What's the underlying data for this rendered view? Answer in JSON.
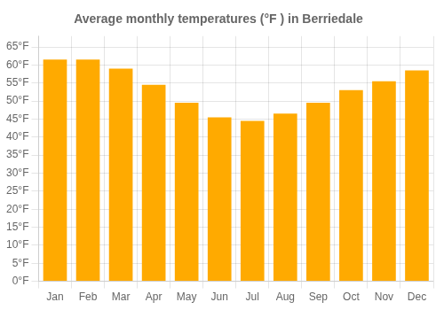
{
  "chart_data": {
    "type": "bar",
    "title": "Average monthly temperatures (°F ) in Berriedale",
    "categories": [
      "Jan",
      "Feb",
      "Mar",
      "Apr",
      "May",
      "Jun",
      "Jul",
      "Aug",
      "Sep",
      "Oct",
      "Nov",
      "Dec"
    ],
    "values": [
      61.5,
      61.5,
      59.0,
      54.5,
      49.5,
      45.5,
      44.5,
      46.5,
      49.5,
      53.0,
      55.5,
      58.5
    ],
    "color": "#FFAA00",
    "ylim": [
      0,
      68
    ],
    "yticks": [
      {
        "value": 0,
        "label": "0°F"
      },
      {
        "value": 5,
        "label": "5°F"
      },
      {
        "value": 10,
        "label": "10°F"
      },
      {
        "value": 15,
        "label": "15°F"
      },
      {
        "value": 20,
        "label": "20°F"
      },
      {
        "value": 25,
        "label": "25°F"
      },
      {
        "value": 30,
        "label": "30°F"
      },
      {
        "value": 35,
        "label": "35°F"
      },
      {
        "value": 40,
        "label": "40°F"
      },
      {
        "value": 45,
        "label": "45°F"
      },
      {
        "value": 50,
        "label": "50°F"
      },
      {
        "value": 55,
        "label": "55°F"
      },
      {
        "value": 60,
        "label": "60°F"
      },
      {
        "value": 65,
        "label": "65°F"
      }
    ],
    "grid": true
  }
}
